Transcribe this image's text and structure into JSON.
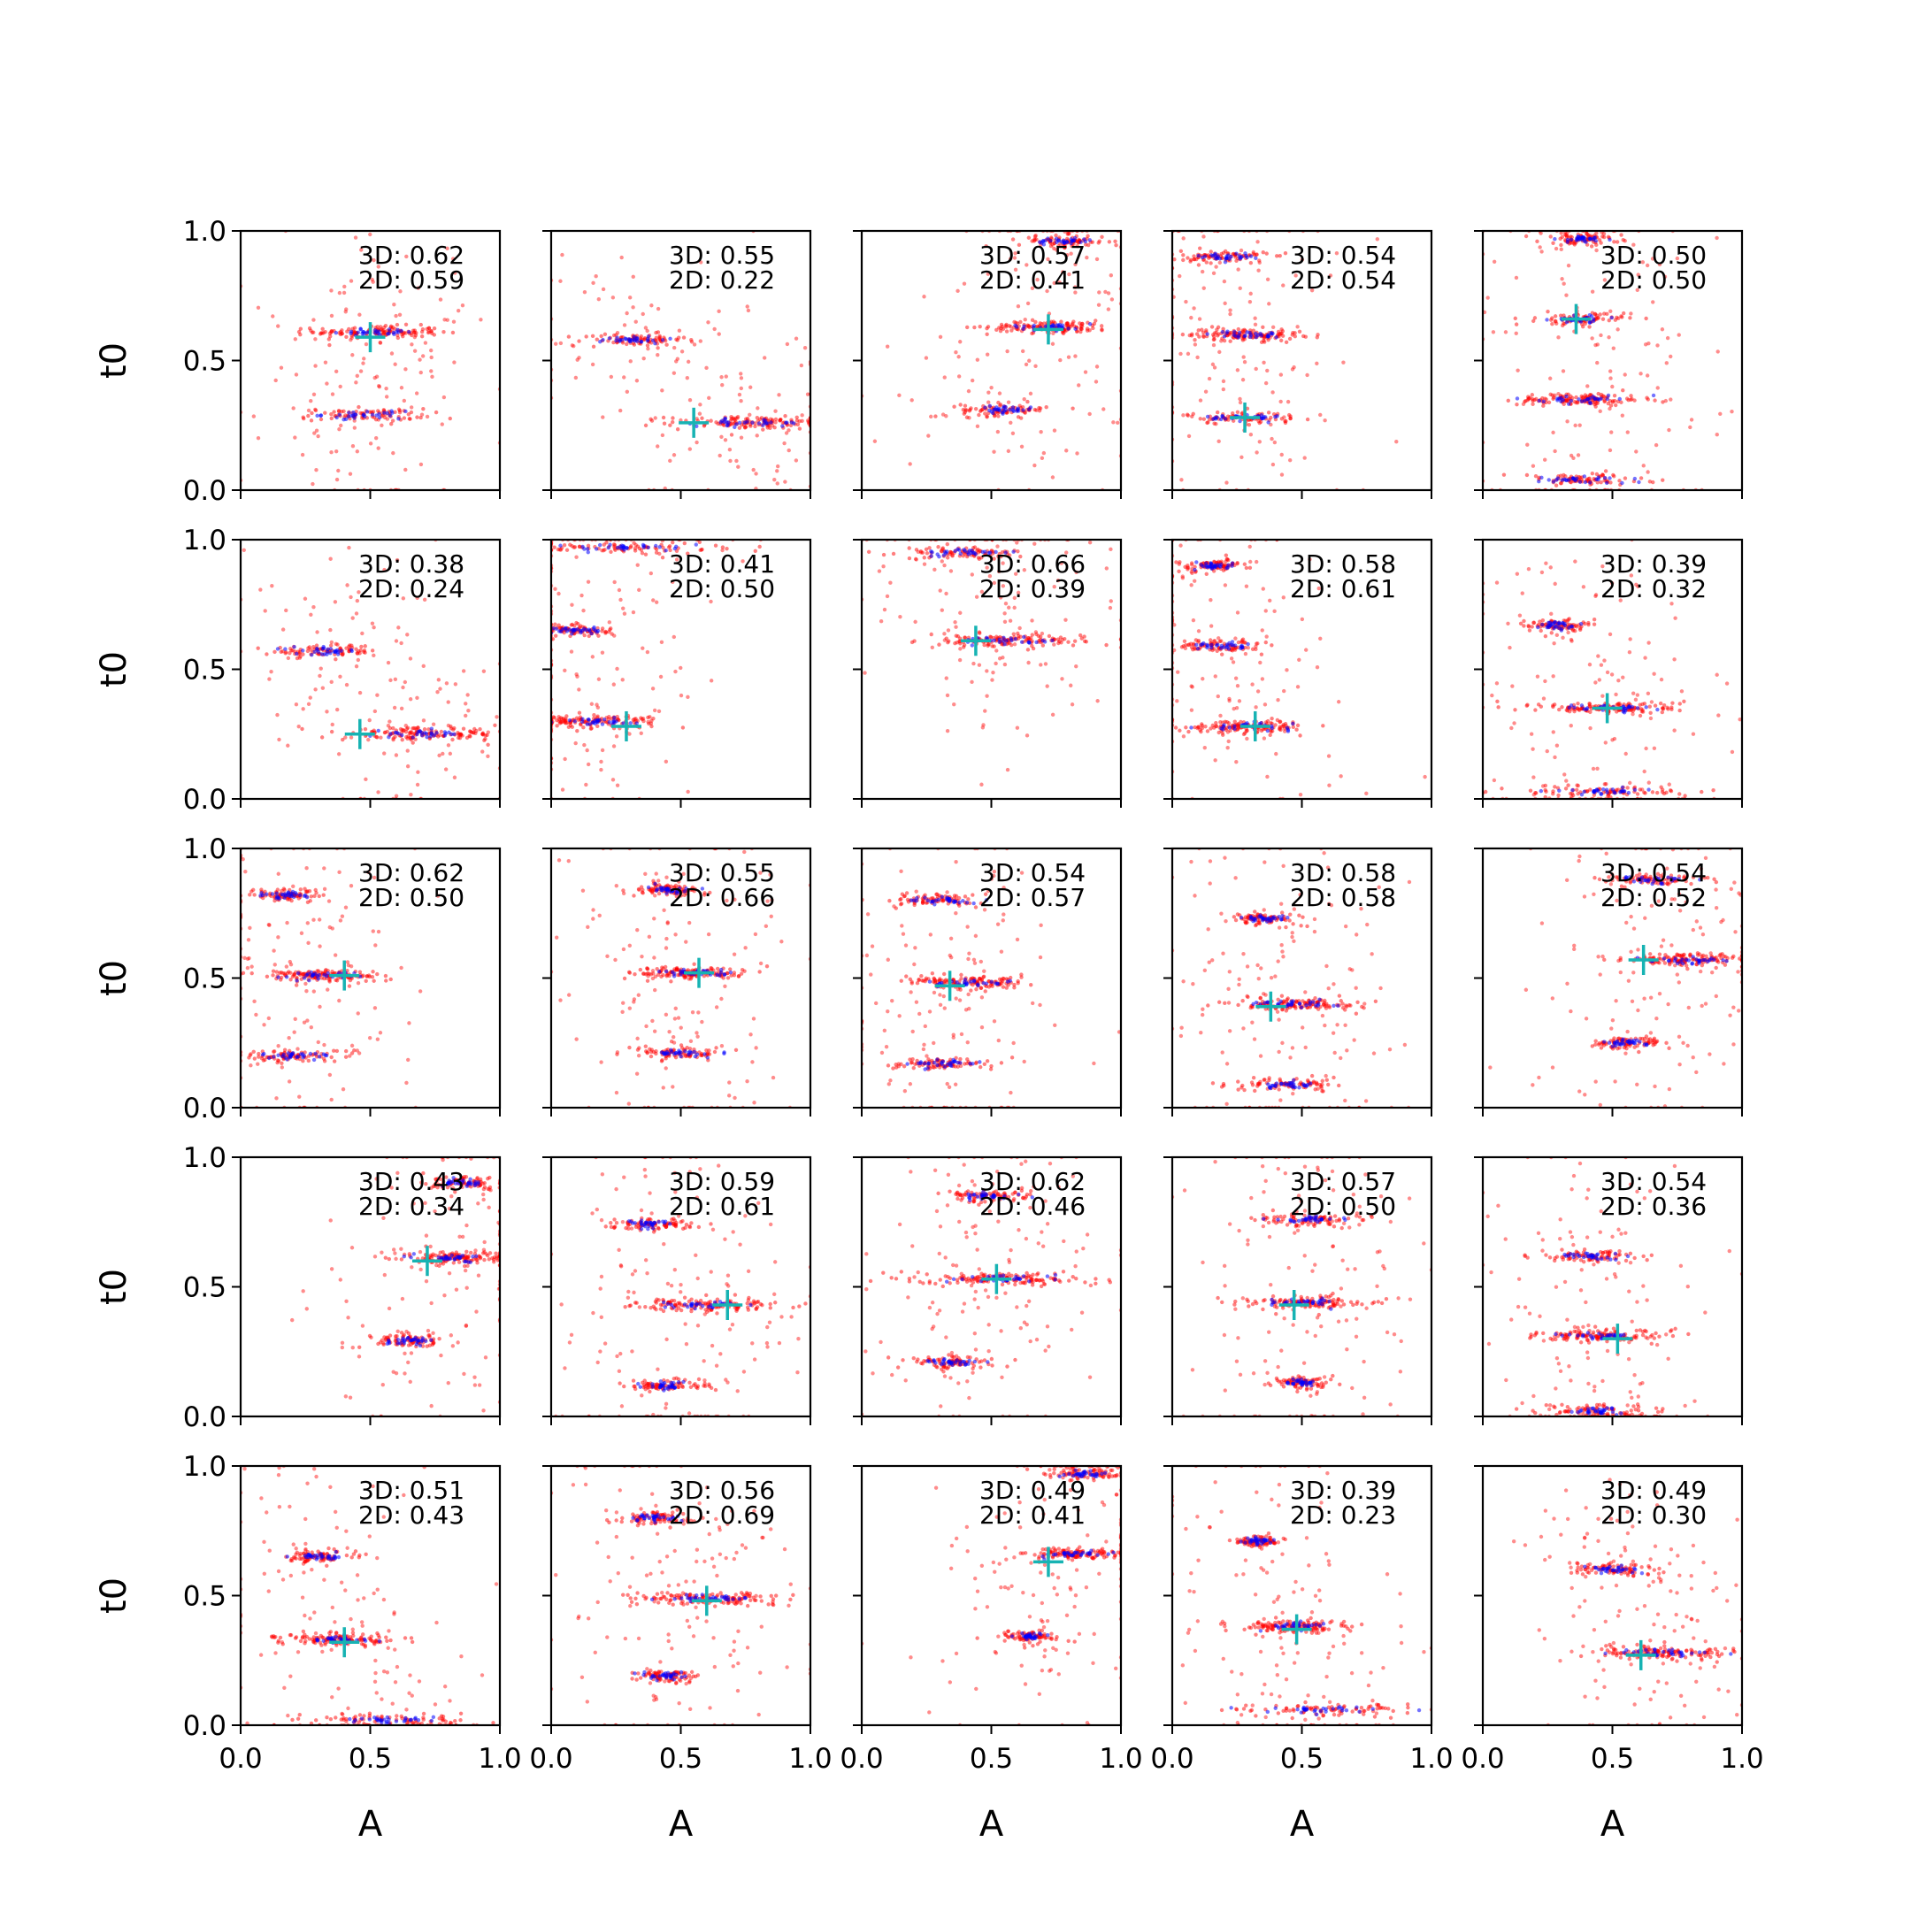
{
  "colors": {
    "posterior": "#ff0000",
    "cluster": "#0000ff",
    "truth_marker": "#17b3b3",
    "axes": "#000000"
  },
  "chart_data": {
    "type": "scatter",
    "grid": false,
    "layout": "5x5",
    "xlabel": "A",
    "ylabel": "t0",
    "xlim": [
      0.0,
      1.0
    ],
    "ylim": [
      0.0,
      1.0
    ],
    "x_ticks": [
      "0.0",
      "0.5",
      "1.0"
    ],
    "y_ticks": [
      "0.0",
      "0.5",
      "1.0"
    ],
    "marker_truth": "plus",
    "panels": [
      {
        "score3d": "3D: 0.62",
        "score2d": "2D: 0.59",
        "truth": [
          0.5,
          0.59
        ],
        "clusters": [
          [
            0.53,
            0.61,
            0.22
          ],
          [
            0.47,
            0.29,
            0.22
          ]
        ]
      },
      {
        "score3d": "3D: 0.55",
        "score2d": "2D: 0.22",
        "truth": [
          0.55,
          0.26
        ],
        "clusters": [
          [
            0.78,
            0.26,
            0.3
          ],
          [
            0.32,
            0.58,
            0.18
          ]
        ]
      },
      {
        "score3d": "3D: 0.57",
        "score2d": "2D: 0.41",
        "truth": [
          0.72,
          0.62
        ],
        "clusters": [
          [
            0.73,
            0.63,
            0.22
          ],
          [
            0.55,
            0.31,
            0.15
          ],
          [
            0.78,
            0.96,
            0.16
          ]
        ]
      },
      {
        "score3d": "3D: 0.54",
        "score2d": "2D: 0.54",
        "truth": [
          0.28,
          0.28
        ],
        "clusters": [
          [
            0.28,
            0.6,
            0.2
          ],
          [
            0.28,
            0.28,
            0.2
          ],
          [
            0.2,
            0.9,
            0.15
          ]
        ]
      },
      {
        "score3d": "3D: 0.50",
        "score2d": "2D: 0.50",
        "truth": [
          0.36,
          0.66
        ],
        "clusters": [
          [
            0.38,
            0.35,
            0.22
          ],
          [
            0.38,
            0.04,
            0.25
          ],
          [
            0.38,
            0.66,
            0.15
          ],
          [
            0.38,
            0.97,
            0.14
          ]
        ]
      },
      {
        "score3d": "3D: 0.38",
        "score2d": "2D: 0.24",
        "truth": [
          0.46,
          0.25
        ],
        "clusters": [
          [
            0.7,
            0.25,
            0.28
          ],
          [
            0.33,
            0.57,
            0.18
          ]
        ]
      },
      {
        "score3d": "3D: 0.41",
        "score2d": "2D: 0.50",
        "truth": [
          0.29,
          0.28
        ],
        "clusters": [
          [
            0.15,
            0.3,
            0.25
          ],
          [
            0.3,
            0.97,
            0.35
          ],
          [
            0.1,
            0.65,
            0.12
          ]
        ]
      },
      {
        "score3d": "3D: 0.66",
        "score2d": "2D: 0.39",
        "truth": [
          0.44,
          0.61
        ],
        "clusters": [
          [
            0.55,
            0.61,
            0.28
          ],
          [
            0.4,
            0.95,
            0.22
          ]
        ]
      },
      {
        "score3d": "3D: 0.58",
        "score2d": "2D: 0.61",
        "truth": [
          0.32,
          0.28
        ],
        "clusters": [
          [
            0.3,
            0.28,
            0.22
          ],
          [
            0.18,
            0.59,
            0.15
          ],
          [
            0.16,
            0.9,
            0.12
          ]
        ]
      },
      {
        "score3d": "3D: 0.39",
        "score2d": "2D: 0.32",
        "truth": [
          0.48,
          0.35
        ],
        "clusters": [
          [
            0.5,
            0.35,
            0.25
          ],
          [
            0.48,
            0.03,
            0.3
          ],
          [
            0.28,
            0.67,
            0.1
          ]
        ]
      },
      {
        "score3d": "3D: 0.62",
        "score2d": "2D: 0.50",
        "truth": [
          0.4,
          0.51
        ],
        "clusters": [
          [
            0.3,
            0.51,
            0.22
          ],
          [
            0.2,
            0.2,
            0.2
          ],
          [
            0.18,
            0.82,
            0.14
          ]
        ]
      },
      {
        "score3d": "3D: 0.55",
        "score2d": "2D: 0.66",
        "truth": [
          0.57,
          0.52
        ],
        "clusters": [
          [
            0.55,
            0.52,
            0.22
          ],
          [
            0.5,
            0.21,
            0.15
          ],
          [
            0.45,
            0.84,
            0.12
          ]
        ]
      },
      {
        "score3d": "3D: 0.54",
        "score2d": "2D: 0.57",
        "truth": [
          0.34,
          0.47
        ],
        "clusters": [
          [
            0.42,
            0.48,
            0.22
          ],
          [
            0.3,
            0.17,
            0.18
          ],
          [
            0.3,
            0.8,
            0.16
          ]
        ]
      },
      {
        "score3d": "3D: 0.58",
        "score2d": "2D: 0.58",
        "truth": [
          0.38,
          0.39
        ],
        "clusters": [
          [
            0.48,
            0.4,
            0.22
          ],
          [
            0.45,
            0.09,
            0.2
          ],
          [
            0.36,
            0.73,
            0.12
          ]
        ]
      },
      {
        "score3d": "3D: 0.54",
        "score2d": "2D: 0.52",
        "truth": [
          0.62,
          0.57
        ],
        "clusters": [
          [
            0.8,
            0.57,
            0.22
          ],
          [
            0.65,
            0.88,
            0.2
          ],
          [
            0.55,
            0.25,
            0.12
          ]
        ]
      },
      {
        "score3d": "3D: 0.43",
        "score2d": "2D: 0.34",
        "truth": [
          0.72,
          0.6
        ],
        "clusters": [
          [
            0.83,
            0.61,
            0.18
          ],
          [
            0.87,
            0.9,
            0.14
          ],
          [
            0.65,
            0.29,
            0.12
          ]
        ]
      },
      {
        "score3d": "3D: 0.59",
        "score2d": "2D: 0.61",
        "truth": [
          0.68,
          0.43
        ],
        "clusters": [
          [
            0.6,
            0.43,
            0.25
          ],
          [
            0.45,
            0.12,
            0.15
          ],
          [
            0.38,
            0.74,
            0.15
          ]
        ]
      },
      {
        "score3d": "3D: 0.62",
        "score2d": "2D: 0.46",
        "truth": [
          0.52,
          0.53
        ],
        "clusters": [
          [
            0.55,
            0.53,
            0.3
          ],
          [
            0.35,
            0.21,
            0.15
          ],
          [
            0.5,
            0.85,
            0.15
          ]
        ]
      },
      {
        "score3d": "3D: 0.57",
        "score2d": "2D: 0.50",
        "truth": [
          0.47,
          0.43
        ],
        "clusters": [
          [
            0.52,
            0.44,
            0.2
          ],
          [
            0.52,
            0.76,
            0.18
          ],
          [
            0.5,
            0.13,
            0.1
          ]
        ]
      },
      {
        "score3d": "3D: 0.54",
        "score2d": "2D: 0.36",
        "truth": [
          0.52,
          0.3
        ],
        "clusters": [
          [
            0.45,
            0.31,
            0.22
          ],
          [
            0.4,
            0.62,
            0.18
          ],
          [
            0.45,
            0.02,
            0.2
          ]
        ]
      },
      {
        "score3d": "3D: 0.51",
        "score2d": "2D: 0.43",
        "truth": [
          0.4,
          0.32
        ],
        "clusters": [
          [
            0.38,
            0.33,
            0.2
          ],
          [
            0.55,
            0.02,
            0.3
          ],
          [
            0.3,
            0.65,
            0.12
          ]
        ]
      },
      {
        "score3d": "3D: 0.56",
        "score2d": "2D: 0.69",
        "truth": [
          0.6,
          0.48
        ],
        "clusters": [
          [
            0.62,
            0.49,
            0.25
          ],
          [
            0.45,
            0.19,
            0.1
          ],
          [
            0.4,
            0.8,
            0.14
          ]
        ]
      },
      {
        "score3d": "3D: 0.49",
        "score2d": "2D: 0.41",
        "truth": [
          0.72,
          0.63
        ],
        "clusters": [
          [
            0.82,
            0.66,
            0.18
          ],
          [
            0.85,
            0.97,
            0.15
          ],
          [
            0.65,
            0.34,
            0.1
          ]
        ]
      },
      {
        "score3d": "3D: 0.39",
        "score2d": "2D: 0.23",
        "truth": [
          0.48,
          0.37
        ],
        "clusters": [
          [
            0.48,
            0.38,
            0.2
          ],
          [
            0.6,
            0.06,
            0.3
          ],
          [
            0.33,
            0.71,
            0.08
          ]
        ]
      },
      {
        "score3d": "3D: 0.49",
        "score2d": "2D: 0.30",
        "truth": [
          0.61,
          0.27
        ],
        "clusters": [
          [
            0.7,
            0.28,
            0.28
          ],
          [
            0.5,
            0.6,
            0.15
          ]
        ]
      }
    ]
  }
}
